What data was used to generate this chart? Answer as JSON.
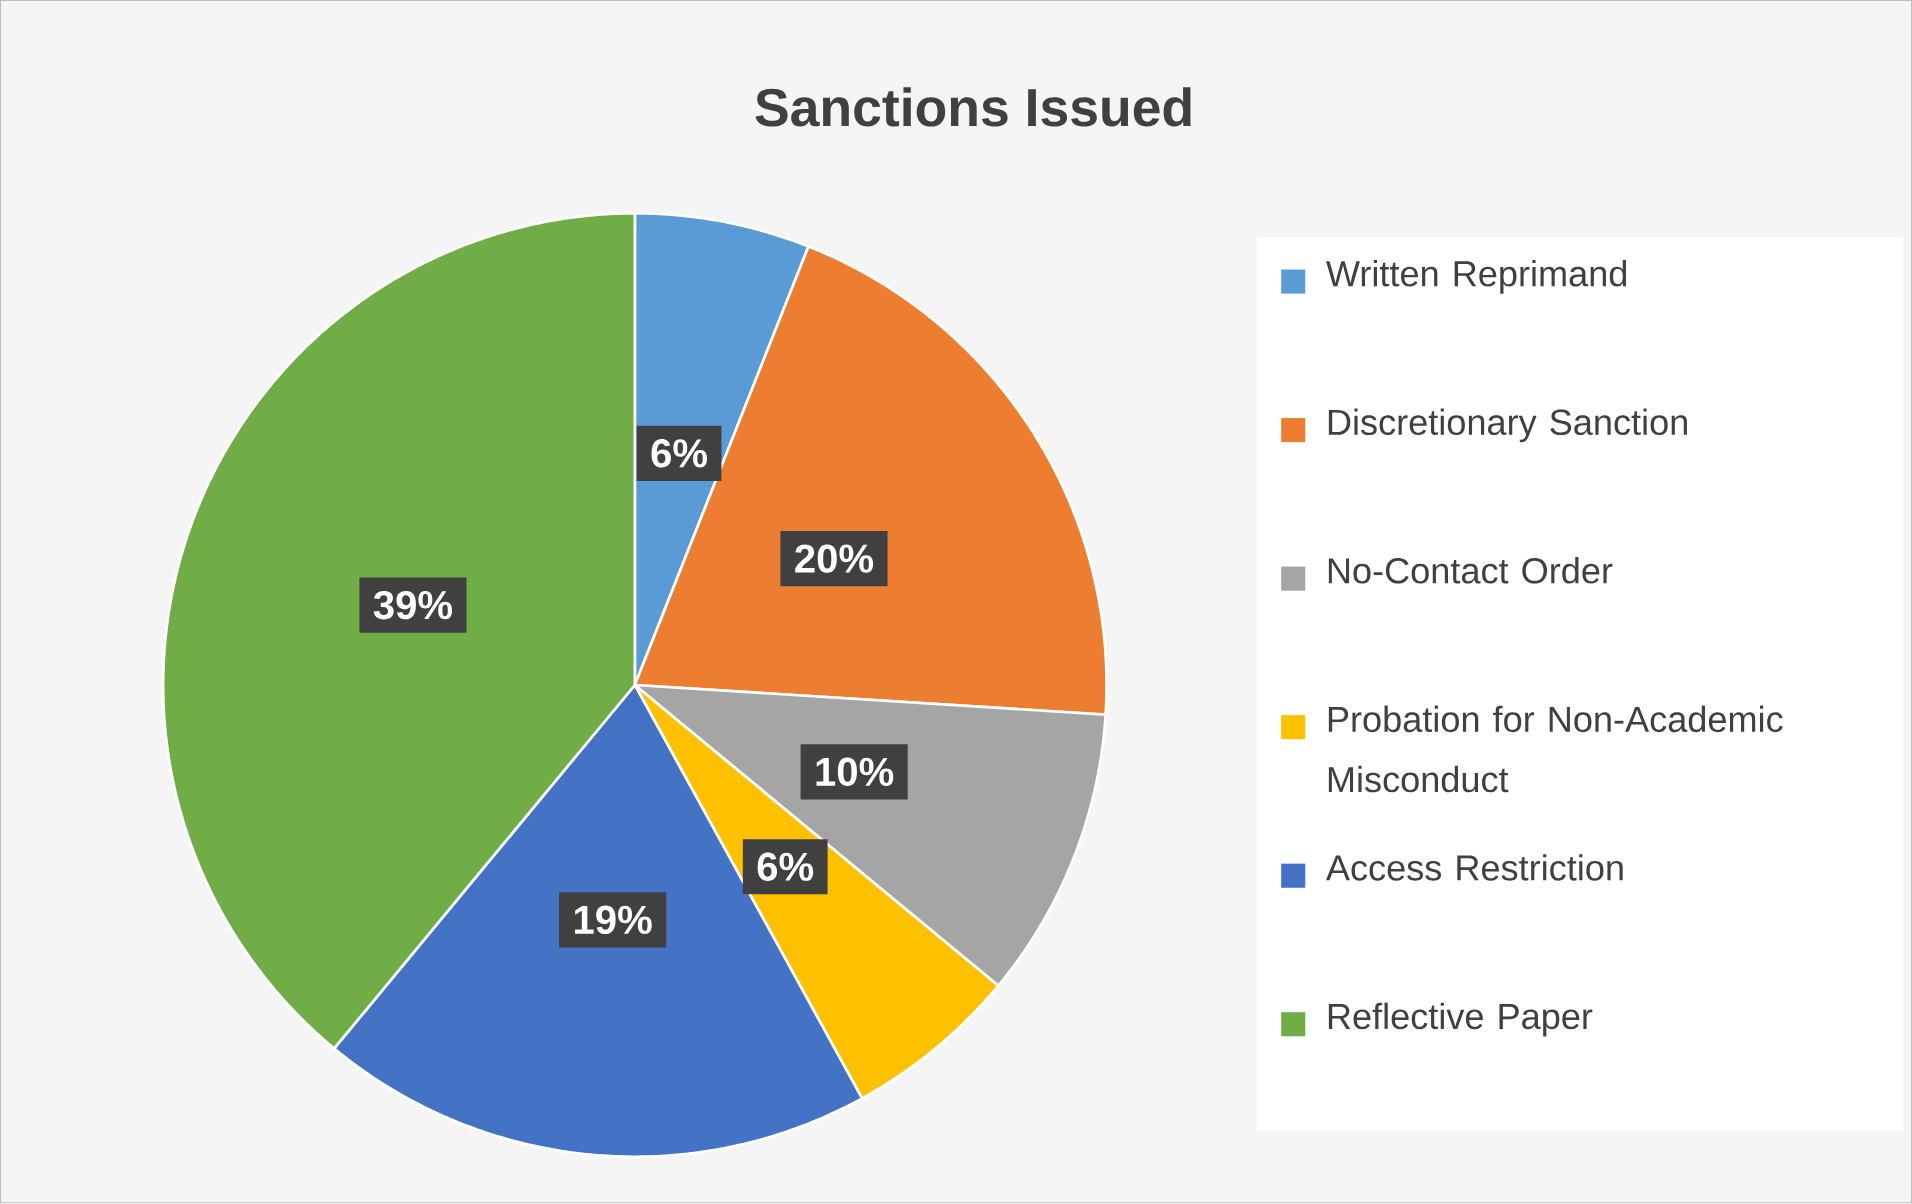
{
  "chart_data": {
    "type": "pie",
    "title": "Sanctions Issued",
    "categories": [
      "Written Reprimand",
      "Discretionary Sanction",
      "No-Contact Order",
      "Probation for Non-Academic Misconduct",
      "Access Restriction",
      "Reflective Paper"
    ],
    "values": [
      6,
      20,
      10,
      6,
      19,
      39
    ],
    "value_labels": [
      "6%",
      "20%",
      "10%",
      "6%",
      "19%",
      "39%"
    ],
    "colors": [
      "#5b9bd5",
      "#ed7d31",
      "#a5a5a5",
      "#ffc000",
      "#4472c4",
      "#70ad47"
    ],
    "legend": "right"
  }
}
